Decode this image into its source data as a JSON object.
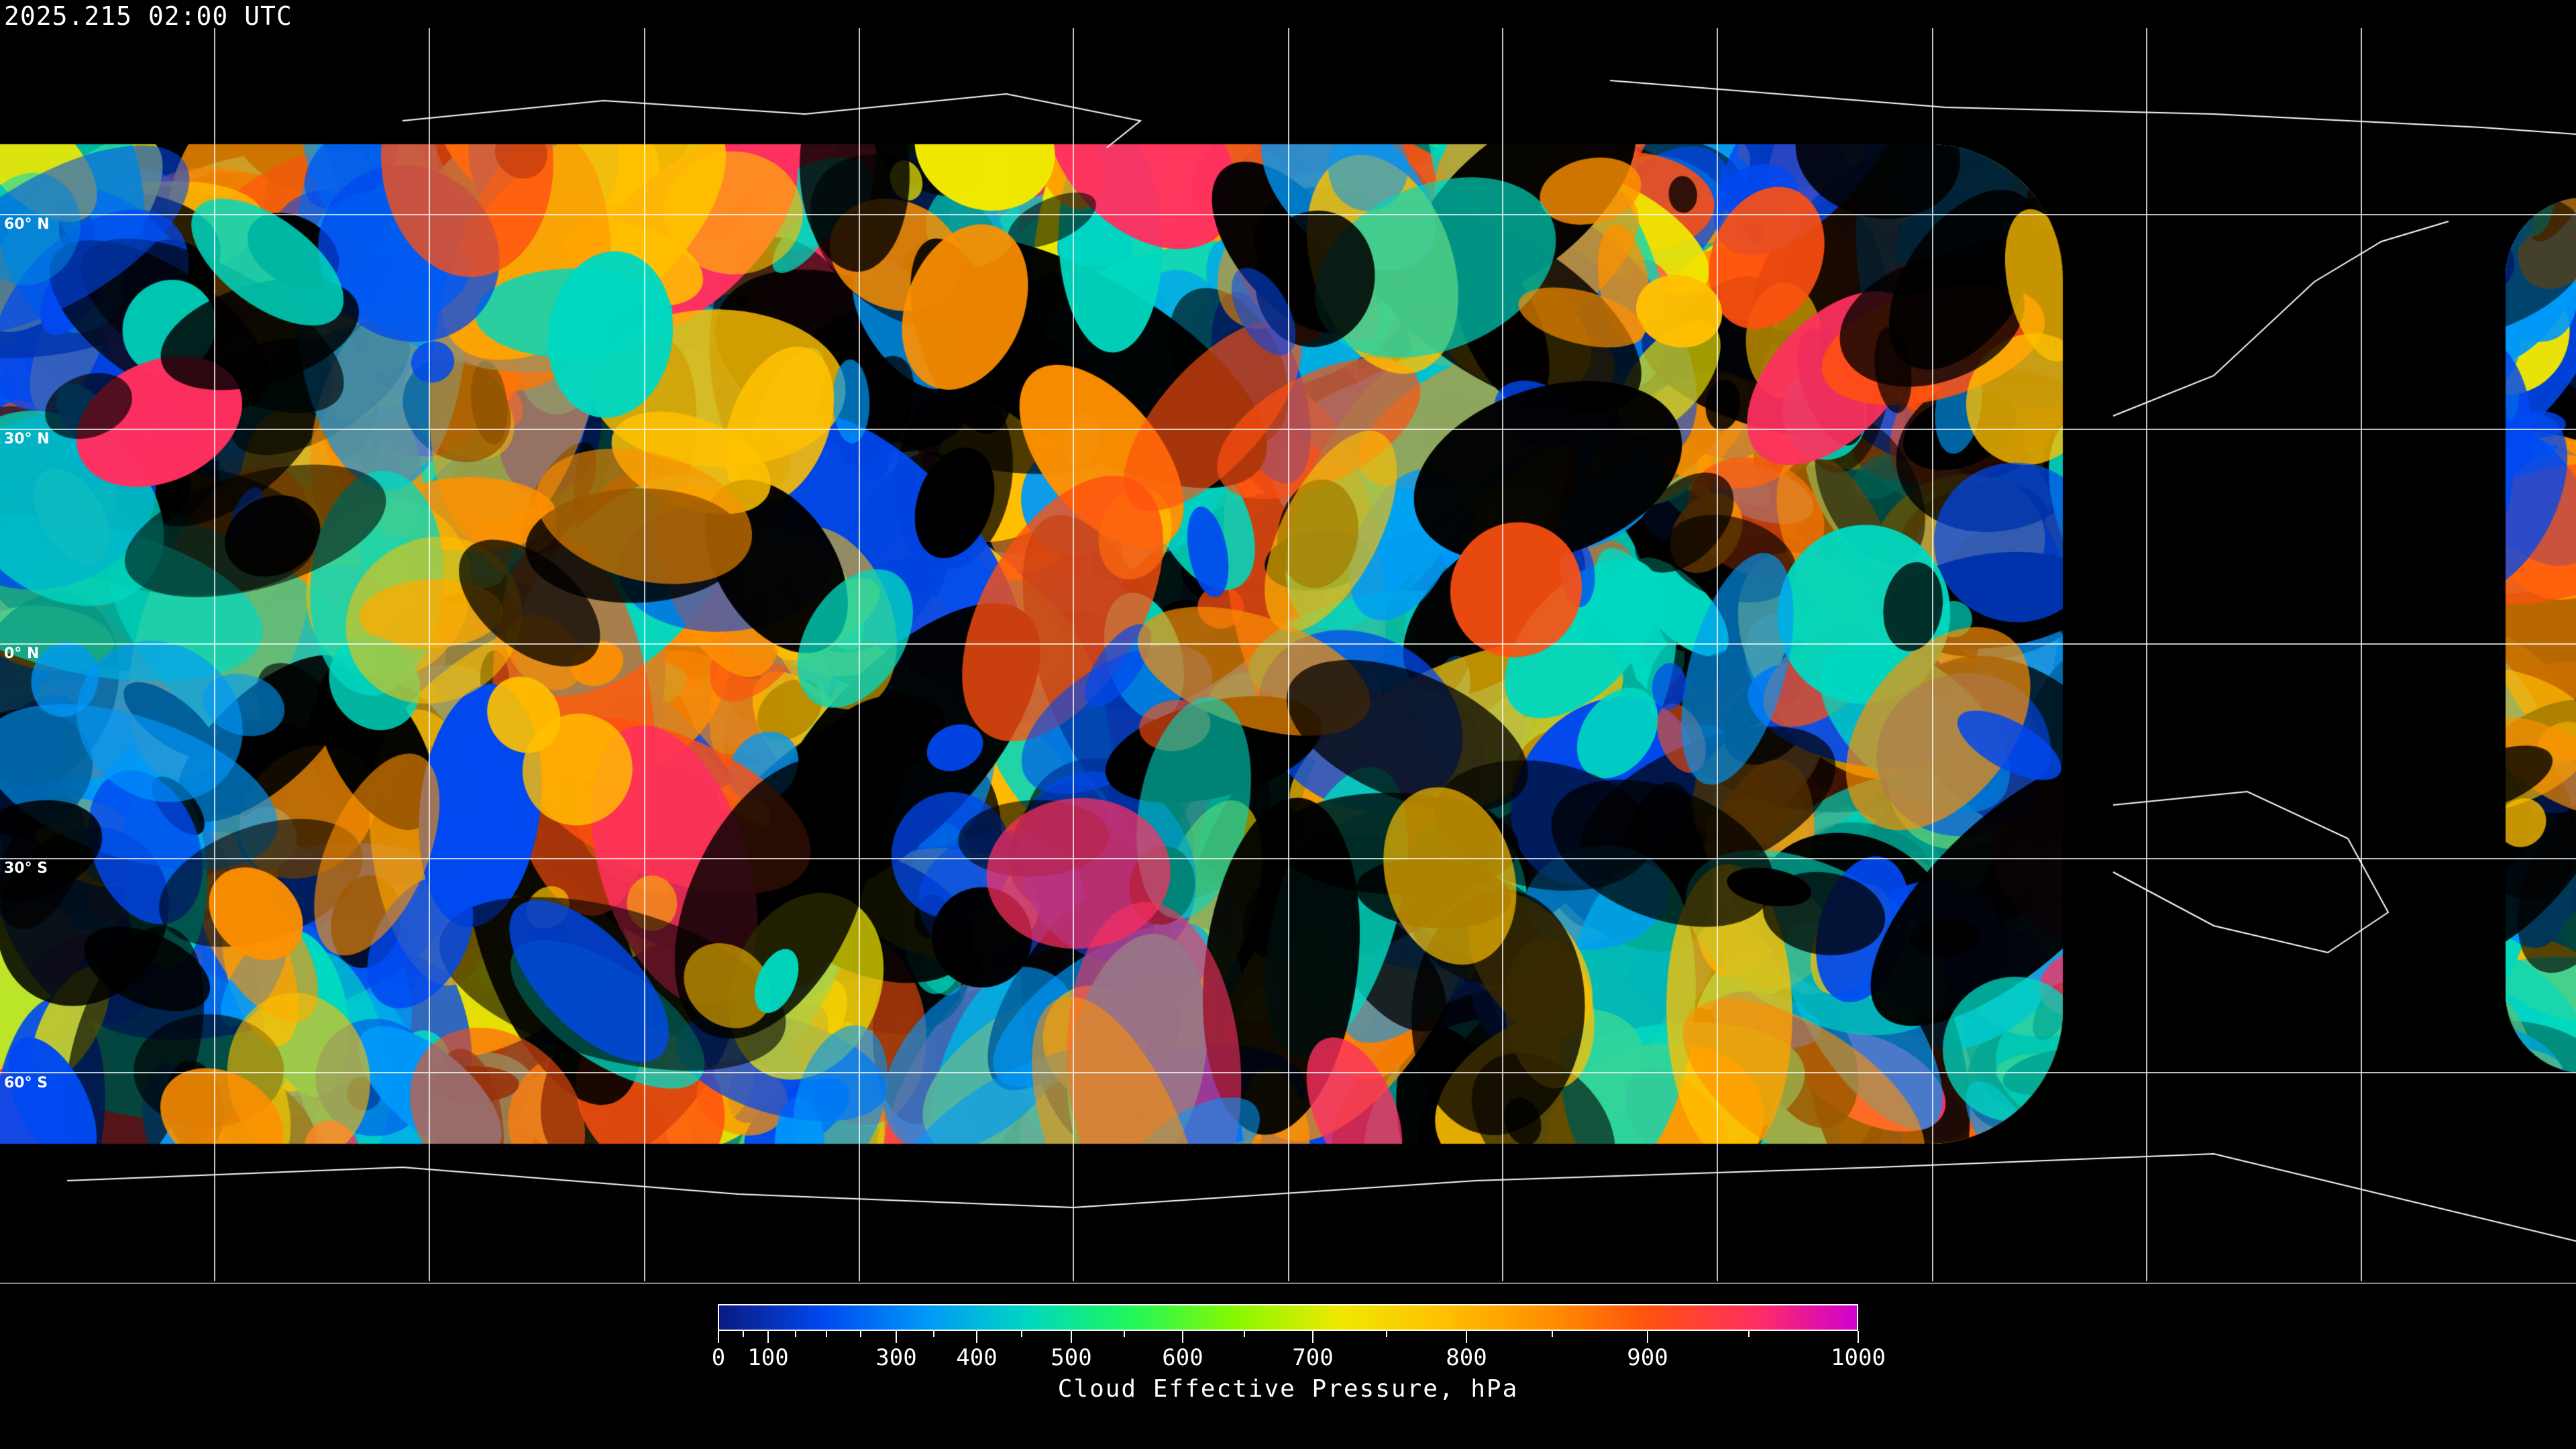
{
  "title": "2025.215 02:00 UTC",
  "map": {
    "latitude_labels": [
      "60° N",
      "30° N",
      "0° N",
      "30° S",
      "60° S"
    ],
    "gridlines": true,
    "background_color": "#000000",
    "no_data_color": "#000000",
    "coastline_color": "#ffffff"
  },
  "colorbar": {
    "title": "Cloud Effective Pressure, hPa",
    "range": [
      0,
      1000
    ],
    "tick_labels": [
      "0",
      "100",
      "300",
      "400",
      "500",
      "600",
      "700",
      "800",
      "900",
      "1000"
    ],
    "colors": [
      "#0a1a80",
      "#0048f0",
      "#0098f8",
      "#00d8c0",
      "#20f858",
      "#88f800",
      "#f0e800",
      "#ffc000",
      "#ff9000",
      "#ff5010",
      "#ff3060",
      "#d000d0"
    ]
  }
}
